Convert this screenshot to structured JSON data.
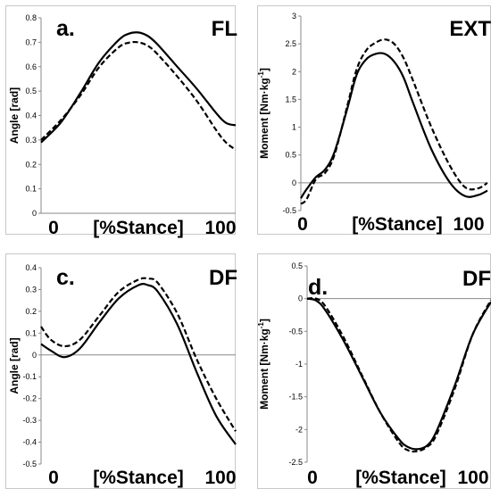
{
  "chart_data": [
    {
      "type": "line",
      "panel_letter": "a.",
      "panel_label": "FL",
      "xlabel": "[%Stance]",
      "x_tick_start": "0",
      "x_tick_end": "100",
      "ylabel": "Angle [rad]",
      "ylim": [
        0,
        0.8
      ],
      "yticks": [
        "0",
        "0.1",
        "0.2",
        "0.3",
        "0.4",
        "0.5",
        "0.6",
        "0.7",
        "0.8"
      ],
      "x": [
        0,
        10,
        20,
        30,
        40,
        45,
        50,
        55,
        60,
        70,
        80,
        90,
        95,
        100
      ],
      "series": [
        {
          "style": "solid",
          "values": [
            0.29,
            0.37,
            0.49,
            0.62,
            0.71,
            0.735,
            0.74,
            0.725,
            0.69,
            0.6,
            0.51,
            0.41,
            0.37,
            0.36
          ]
        },
        {
          "style": "dashed",
          "values": [
            0.3,
            0.38,
            0.48,
            0.6,
            0.68,
            0.698,
            0.7,
            0.685,
            0.65,
            0.56,
            0.46,
            0.34,
            0.29,
            0.26
          ]
        }
      ]
    },
    {
      "type": "line",
      "panel_letter": "",
      "panel_label": "EXT",
      "xlabel": "[%Stance]",
      "x_tick_start": "0",
      "x_tick_end": "100",
      "ylabel": "Moment [Nm·kg",
      "ylabel_sup": "-1",
      "ylabel_end": "]",
      "ylim": [
        -0.5,
        3
      ],
      "yticks": [
        "-0.5",
        "0",
        "0.5",
        "1",
        "1.5",
        "2",
        "2.5",
        "3"
      ],
      "x": [
        0,
        3,
        8,
        13,
        18,
        25,
        30,
        35,
        40,
        45,
        50,
        55,
        60,
        70,
        80,
        88,
        95,
        100
      ],
      "series": [
        {
          "style": "solid",
          "values": [
            -0.28,
            -0.12,
            0.1,
            0.24,
            0.55,
            1.35,
            1.95,
            2.22,
            2.32,
            2.32,
            2.18,
            1.9,
            1.45,
            0.6,
            0.0,
            -0.24,
            -0.22,
            -0.14
          ]
        },
        {
          "style": "dashed",
          "values": [
            -0.38,
            -0.3,
            0.06,
            0.18,
            0.5,
            1.4,
            2.05,
            2.38,
            2.52,
            2.58,
            2.5,
            2.25,
            1.85,
            1.0,
            0.3,
            -0.08,
            -0.1,
            0.0
          ]
        }
      ]
    },
    {
      "type": "line",
      "panel_letter": "c.",
      "panel_label": "DF",
      "xlabel": "[%Stance]",
      "x_tick_start": "0",
      "x_tick_end": "100",
      "ylabel": "Angle [rad]",
      "ylim": [
        -0.5,
        0.4
      ],
      "yticks": [
        "-0.5",
        "-0.4",
        "-0.3",
        "-0.2",
        "-0.1",
        "0",
        "0.1",
        "0.2",
        "0.3",
        "0.4"
      ],
      "x": [
        0,
        5,
        12,
        20,
        30,
        40,
        50,
        55,
        60,
        70,
        80,
        90,
        100
      ],
      "series": [
        {
          "style": "solid",
          "values": [
            0.05,
            0.02,
            -0.01,
            0.03,
            0.15,
            0.26,
            0.32,
            0.32,
            0.29,
            0.14,
            -0.08,
            -0.28,
            -0.41
          ]
        },
        {
          "style": "dashed",
          "values": [
            0.13,
            0.07,
            0.04,
            0.07,
            0.18,
            0.29,
            0.345,
            0.35,
            0.33,
            0.19,
            -0.02,
            -0.2,
            -0.35
          ]
        }
      ]
    },
    {
      "type": "line",
      "panel_letter": "d.",
      "panel_label": "DF",
      "xlabel": "[%Stance]",
      "x_tick_start": "0",
      "x_tick_end": "100",
      "ylabel": "Moment [Nm·kg",
      "ylabel_sup": "-1",
      "ylabel_end": "]",
      "ylim": [
        -2.5,
        0.5
      ],
      "yticks": [
        "-2.5",
        "-2",
        "-1.5",
        "-1",
        "-0.5",
        "0",
        "0.5"
      ],
      "x": [
        0,
        5,
        10,
        20,
        30,
        40,
        50,
        55,
        60,
        65,
        70,
        80,
        90,
        100
      ],
      "series": [
        {
          "style": "solid",
          "values": [
            0.0,
            -0.03,
            -0.18,
            -0.65,
            -1.2,
            -1.75,
            -2.15,
            -2.27,
            -2.3,
            -2.25,
            -2.05,
            -1.35,
            -0.55,
            -0.05
          ]
        },
        {
          "style": "dashed",
          "values": [
            0.0,
            0.0,
            -0.12,
            -0.6,
            -1.18,
            -1.75,
            -2.2,
            -2.32,
            -2.33,
            -2.27,
            -2.1,
            -1.4,
            -0.55,
            -0.02
          ]
        }
      ]
    }
  ]
}
